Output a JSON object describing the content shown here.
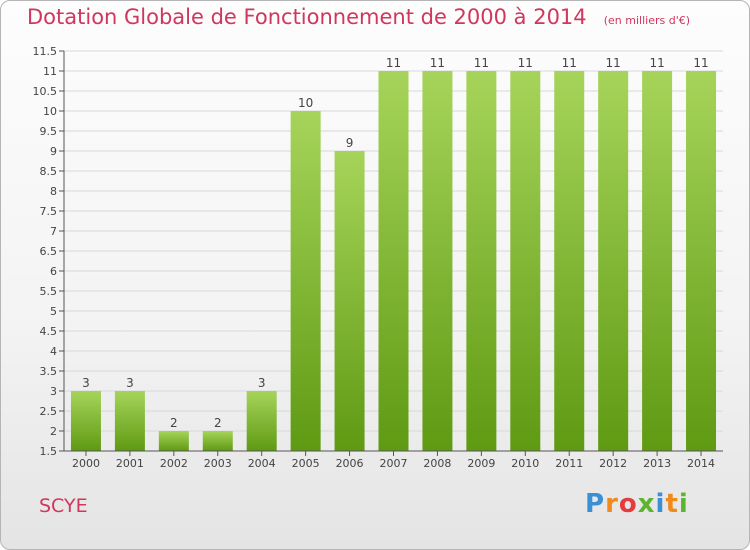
{
  "header": {
    "title": "Dotation Globale de Fonctionnement de 2000 à 2014",
    "subtitle": "(en milliers d'€)"
  },
  "footer": {
    "commune": "SCYE",
    "logo": "Proxiti"
  },
  "colors": {
    "title": "#d0365e",
    "bar_top": "#a6d45a",
    "bar_bottom": "#5f9a13",
    "axis": "#555555",
    "grid": "#d8d8d8"
  },
  "chart_data": {
    "type": "bar",
    "title": "Dotation Globale de Fonctionnement de 2000 à 2014",
    "xlabel": "",
    "ylabel": "",
    "categories": [
      "2000",
      "2001",
      "2002",
      "2003",
      "2004",
      "2005",
      "2006",
      "2007",
      "2008",
      "2009",
      "2010",
      "2011",
      "2012",
      "2013",
      "2014"
    ],
    "values": [
      3,
      3,
      2,
      2,
      3,
      10,
      9,
      11,
      11,
      11,
      11,
      11,
      11,
      11,
      11
    ],
    "data_labels": [
      "3",
      "3",
      "2",
      "2",
      "3",
      "10",
      "9",
      "11",
      "11",
      "11",
      "11",
      "11",
      "11",
      "11",
      "11"
    ],
    "ylim": [
      1.5,
      11.5
    ],
    "yticks": [
      "1.5",
      "2",
      "2.5",
      "3",
      "3.5",
      "4",
      "4.5",
      "5",
      "5.5",
      "6",
      "6.5",
      "7",
      "7.5",
      "8",
      "8.5",
      "9",
      "9.5",
      "10",
      "10.5",
      "11",
      "11.5"
    ],
    "grid": true,
    "legend": "none"
  }
}
